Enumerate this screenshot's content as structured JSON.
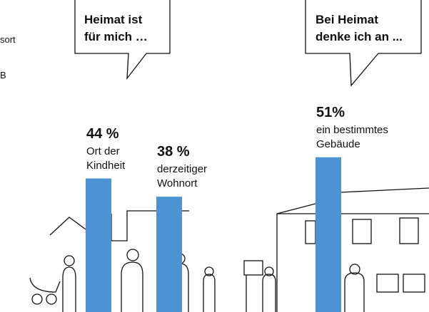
{
  "annotations": [
    "sort",
    "B"
  ],
  "chart_data": [
    {
      "type": "bar",
      "title": "Heimat ist\nfür mich …",
      "color": "#4b93d3",
      "categories": [
        "Ort der\nKindheit",
        "derzeitiger\nWohnort"
      ],
      "values": [
        44,
        38
      ],
      "value_labels": [
        "44 %",
        "38 %"
      ],
      "ylim": [
        0,
        100
      ]
    },
    {
      "type": "bar",
      "title": "Bei Heimat\ndenke ich an ...",
      "color": "#4b93d3",
      "categories": [
        "ein bestimmtes\nGebäude"
      ],
      "values": [
        51
      ],
      "value_labels": [
        "51%"
      ],
      "ylim": [
        0,
        100
      ]
    }
  ]
}
